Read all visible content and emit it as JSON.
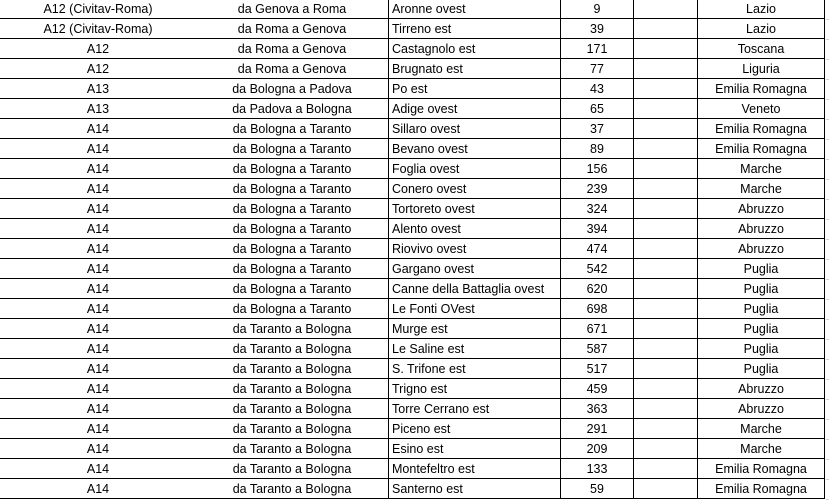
{
  "rows": [
    {
      "road": "A12 (Civitav-Roma)",
      "direction": "da Genova a Roma",
      "area": "Aronne ovest",
      "km": "9",
      "region": "Lazio"
    },
    {
      "road": "A12 (Civitav-Roma)",
      "direction": "da Roma a Genova",
      "area": "Tirreno est",
      "km": "39",
      "region": "Lazio"
    },
    {
      "road": "A12",
      "direction": "da Roma a Genova",
      "area": "Castagnolo est",
      "km": "171",
      "region": "Toscana"
    },
    {
      "road": "A12",
      "direction": "da Roma a Genova",
      "area": "Brugnato est",
      "km": "77",
      "region": "Liguria"
    },
    {
      "road": "A13",
      "direction": "da Bologna a Padova",
      "area": "Po est",
      "km": "43",
      "region": "Emilia Romagna"
    },
    {
      "road": "A13",
      "direction": "da Padova a Bologna",
      "area": "Adige ovest",
      "km": "65",
      "region": "Veneto"
    },
    {
      "road": "A14",
      "direction": "da Bologna a Taranto",
      "area": "Sillaro ovest",
      "km": "37",
      "region": "Emilia Romagna"
    },
    {
      "road": "A14",
      "direction": "da Bologna a Taranto",
      "area": "Bevano ovest",
      "km": "89",
      "region": "Emilia Romagna"
    },
    {
      "road": "A14",
      "direction": "da Bologna a Taranto",
      "area": "Foglia ovest",
      "km": "156",
      "region": "Marche"
    },
    {
      "road": "A14",
      "direction": "da Bologna a Taranto",
      "area": "Conero ovest",
      "km": "239",
      "region": "Marche"
    },
    {
      "road": "A14",
      "direction": "da Bologna a Taranto",
      "area": "Tortoreto ovest",
      "km": "324",
      "region": "Abruzzo"
    },
    {
      "road": "A14",
      "direction": "da Bologna a Taranto",
      "area": "Alento ovest",
      "km": "394",
      "region": "Abruzzo"
    },
    {
      "road": "A14",
      "direction": "da Bologna a Taranto",
      "area": "Riovivo ovest",
      "km": "474",
      "region": "Abruzzo"
    },
    {
      "road": "A14",
      "direction": "da Bologna a Taranto",
      "area": "Gargano ovest",
      "km": "542",
      "region": "Puglia"
    },
    {
      "road": "A14",
      "direction": "da Bologna a Taranto",
      "area": "Canne della Battaglia ovest",
      "km": "620",
      "region": "Puglia"
    },
    {
      "road": "A14",
      "direction": "da Bologna a Taranto",
      "area": "Le Fonti OVest",
      "km": "698",
      "region": "Puglia"
    },
    {
      "road": "A14",
      "direction": "da Taranto a Bologna",
      "area": "Murge est",
      "km": "671",
      "region": "Puglia"
    },
    {
      "road": "A14",
      "direction": "da Taranto a Bologna",
      "area": "Le Saline est",
      "km": "587",
      "region": "Puglia"
    },
    {
      "road": "A14",
      "direction": "da Taranto a Bologna",
      "area": "S. Trifone est",
      "km": "517",
      "region": "Puglia"
    },
    {
      "road": "A14",
      "direction": "da Taranto a Bologna",
      "area": "Trigno est",
      "km": "459",
      "region": "Abruzzo"
    },
    {
      "road": "A14",
      "direction": "da Taranto a Bologna",
      "area": "Torre Cerrano est",
      "km": "363",
      "region": "Abruzzo"
    },
    {
      "road": "A14",
      "direction": "da Taranto a Bologna",
      "area": "Piceno est",
      "km": "291",
      "region": "Marche"
    },
    {
      "road": "A14",
      "direction": "da Taranto a Bologna",
      "area": "Esino est",
      "km": "209",
      "region": "Marche"
    },
    {
      "road": "A14",
      "direction": "da Taranto a Bologna",
      "area": "Montefeltro est",
      "km": "133",
      "region": "Emilia Romagna"
    },
    {
      "road": "A14",
      "direction": "da Taranto a Bologna",
      "area": "Santerno est",
      "km": "59",
      "region": "Emilia Romagna"
    }
  ]
}
